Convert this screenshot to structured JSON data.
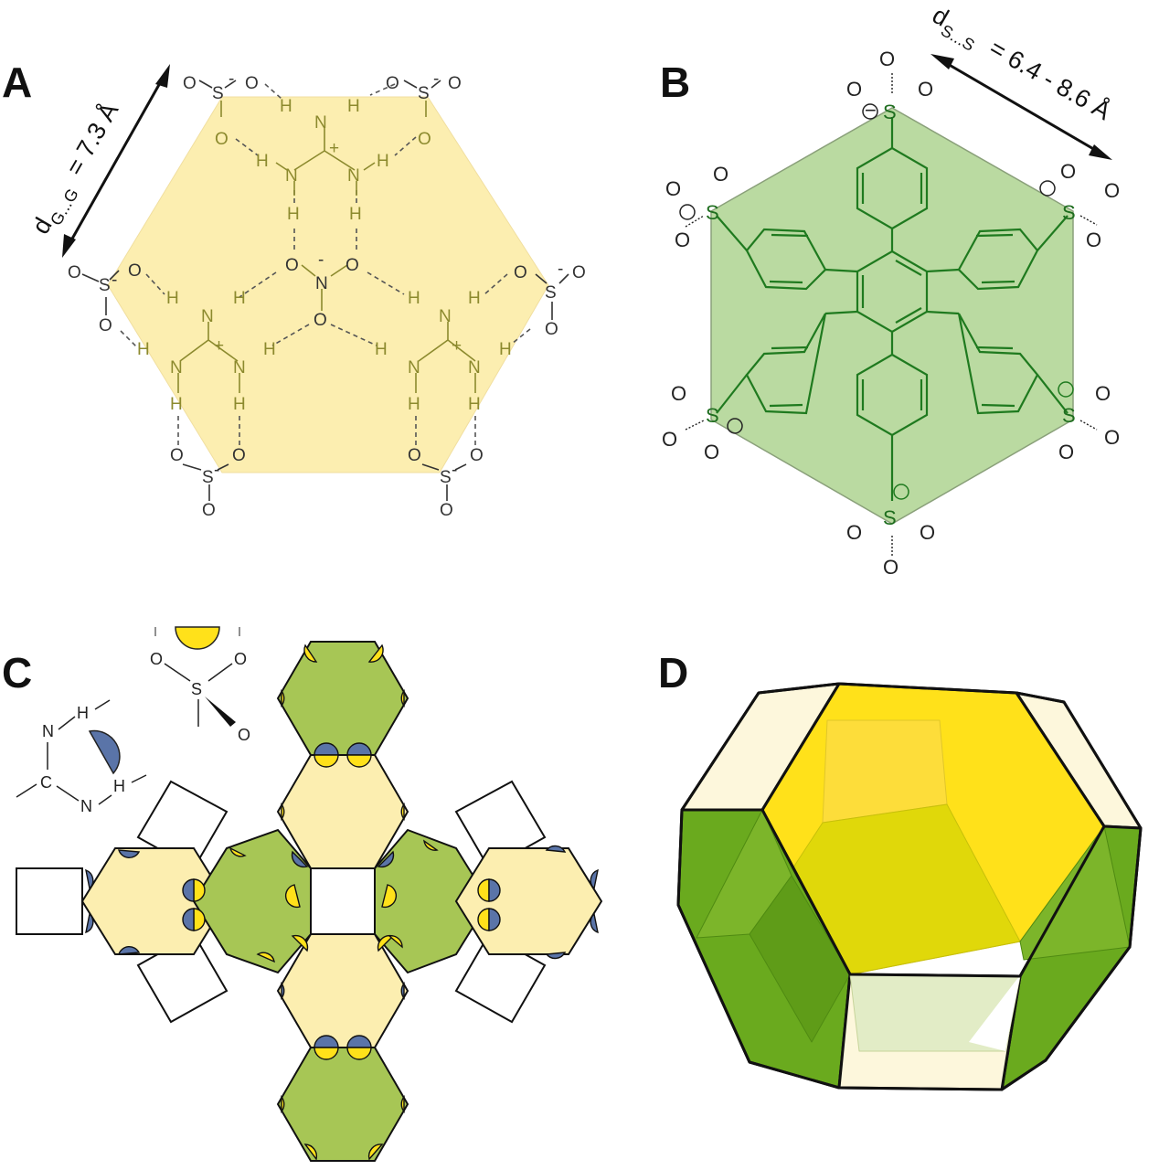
{
  "panels": {
    "a": {
      "label": "A"
    },
    "b": {
      "label": "B"
    },
    "c": {
      "label": "C"
    },
    "d": {
      "label": "D"
    }
  },
  "panel_a": {
    "distance": {
      "prefix": "d",
      "subscript": "G...G",
      "value": "= 7.3 Å"
    },
    "atoms": {
      "o": "O",
      "s": "S",
      "n": "N",
      "h": "H",
      "minus": "-",
      "plus": "+"
    }
  },
  "panel_b": {
    "distance": {
      "prefix": "d",
      "subscript": "S...S",
      "value": "= 6.4 - 8.6 Å"
    },
    "atoms": {
      "o": "O",
      "s": "S",
      "minus": "−"
    }
  },
  "panel_c": {
    "legend_sulfonate": {
      "s": "S",
      "o": "O"
    },
    "legend_guanidinium": {
      "n": "N",
      "h": "H",
      "c": "C"
    }
  },
  "colors": {
    "pale_yellow": "#fceeb0",
    "yellow": "#ffe11a",
    "green": "#a7c655",
    "dark_green": "#6aaa1e",
    "blue": "#5a74a8",
    "olive_text": "#8c8a2e",
    "b_green": "#8fc46a"
  }
}
